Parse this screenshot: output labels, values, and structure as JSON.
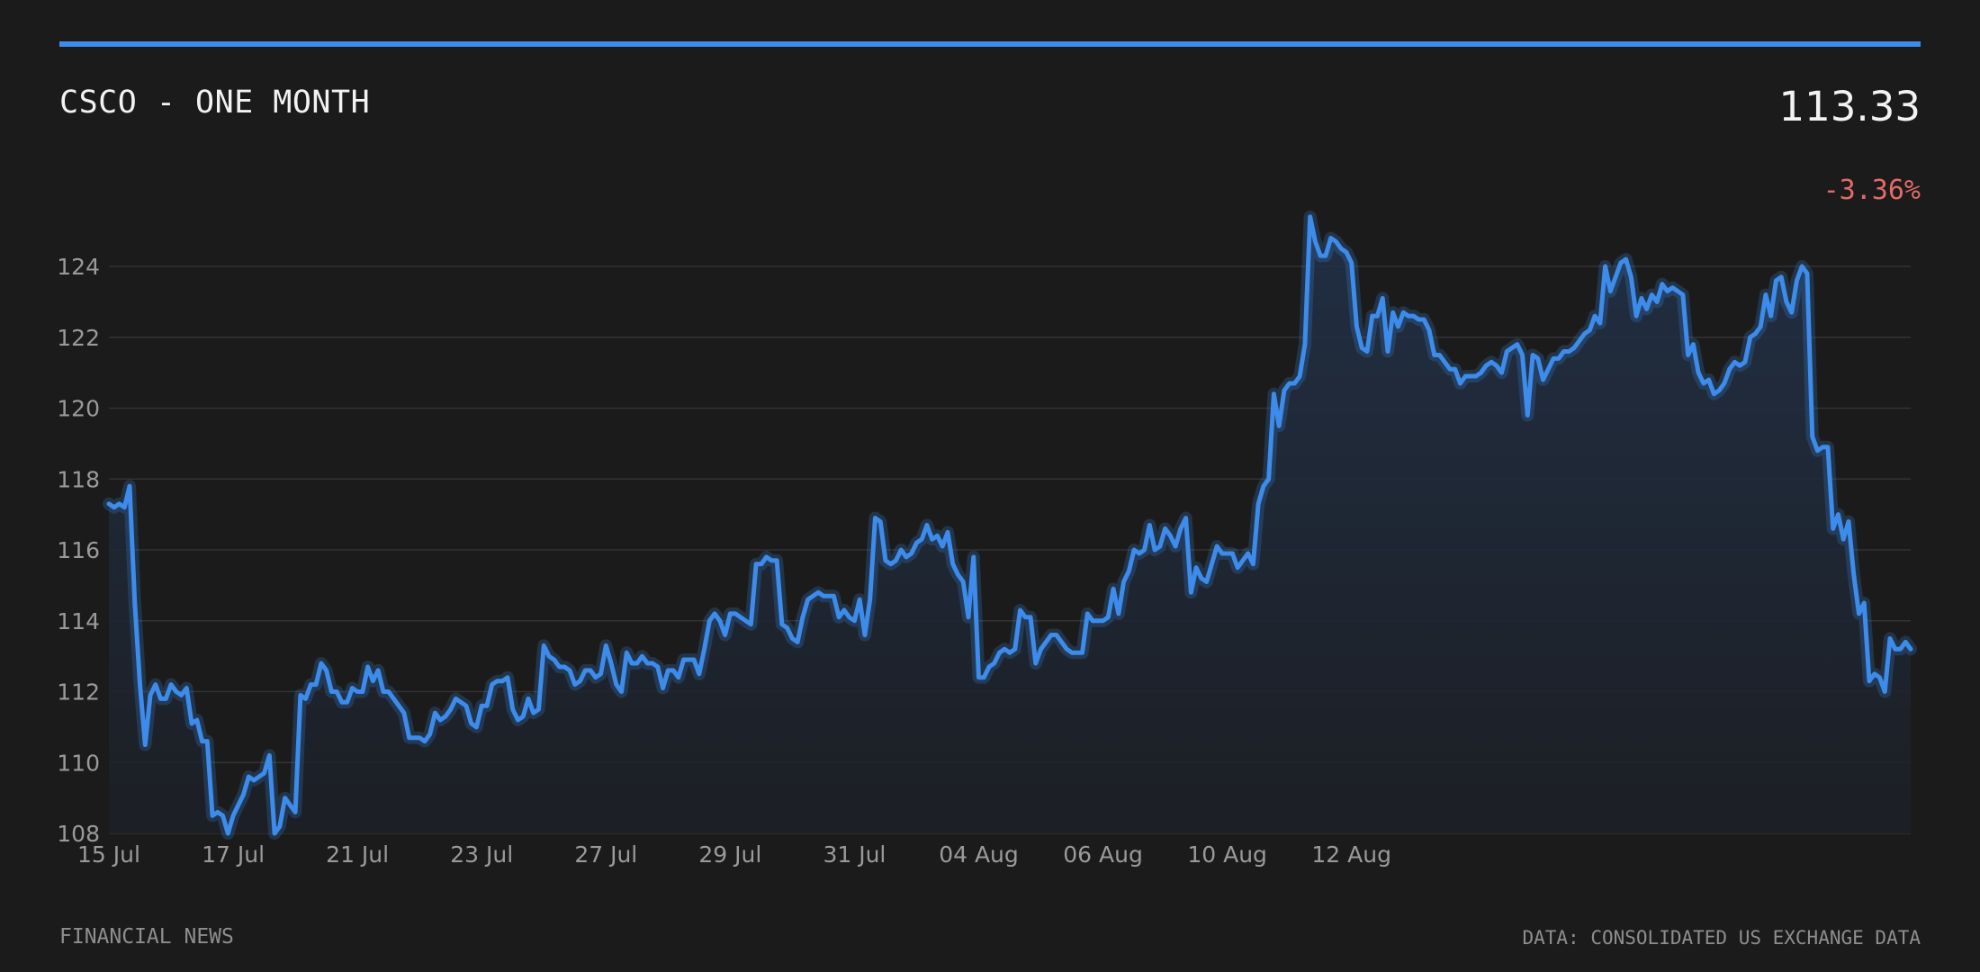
{
  "header": {
    "title": "CSCO - ONE MONTH",
    "price": "113.33",
    "change": "-3.36%"
  },
  "footer": {
    "source": "FINANCIAL NEWS",
    "credit": "DATA: CONSOLIDATED US EXCHANGE DATA"
  },
  "colors": {
    "background": "#1b1b1b",
    "accent": "#3d8bea",
    "line": "#3d8bea",
    "negative": "#e36a6a",
    "grid": "#333333",
    "tick_label": "#9a9a9a"
  },
  "chart_data": {
    "type": "area",
    "title": "CSCO - ONE MONTH",
    "xlabel": "",
    "ylabel": "",
    "ylim": [
      108,
      125.5
    ],
    "grid": true,
    "yticks": [
      108,
      110,
      112,
      114,
      116,
      118,
      120,
      122,
      124
    ],
    "xticks": [
      {
        "label": "15 Jul",
        "t": 0
      },
      {
        "label": "17 Jul",
        "t": 24
      },
      {
        "label": "21 Jul",
        "t": 48
      },
      {
        "label": "23 Jul",
        "t": 72
      },
      {
        "label": "27 Jul",
        "t": 96
      },
      {
        "label": "29 Jul",
        "t": 120
      },
      {
        "label": "31 Jul",
        "t": 144
      },
      {
        "label": "04 Aug",
        "t": 168
      },
      {
        "label": "06 Aug",
        "t": 192
      },
      {
        "label": "10 Aug",
        "t": 216
      },
      {
        "label": "12 Aug",
        "t": 240
      }
    ],
    "series": [
      {
        "values": [
          117.3,
          117.2,
          117.3,
          117.2,
          117.8,
          114.5,
          112.2,
          110.5,
          111.9,
          112.2,
          111.8,
          111.8,
          112.2,
          112.0,
          111.9,
          112.1,
          111.1,
          111.2,
          110.6,
          110.6,
          108.5,
          108.6,
          108.5,
          108.0,
          108.5,
          108.8,
          109.1,
          109.6,
          109.5,
          109.6,
          109.7,
          110.2,
          108.0,
          108.2,
          109.0,
          108.8,
          108.6,
          111.9,
          111.8,
          112.2,
          112.2,
          112.8,
          112.6,
          112.0,
          112.0,
          111.7,
          111.7,
          112.1,
          112.0,
          112.0,
          112.7,
          112.3,
          112.6,
          112.0,
          112.0,
          111.8,
          111.6,
          111.4,
          110.7,
          110.7,
          110.7,
          110.6,
          110.8,
          111.4,
          111.2,
          111.3,
          111.5,
          111.8,
          111.7,
          111.6,
          111.1,
          111.0,
          111.6,
          111.6,
          112.2,
          112.3,
          112.3,
          112.4,
          111.5,
          111.2,
          111.3,
          111.8,
          111.4,
          111.5,
          113.3,
          113.0,
          112.9,
          112.7,
          112.7,
          112.6,
          112.2,
          112.3,
          112.6,
          112.6,
          112.4,
          112.5,
          113.3,
          112.8,
          112.2,
          112.0,
          113.1,
          112.8,
          112.8,
          113.0,
          112.8,
          112.8,
          112.7,
          112.1,
          112.6,
          112.6,
          112.4,
          112.9,
          112.9,
          112.9,
          112.5,
          113.2,
          114.0,
          114.2,
          114.0,
          113.6,
          114.2,
          114.2,
          114.1,
          114.0,
          113.9,
          115.6,
          115.6,
          115.8,
          115.7,
          115.7,
          113.9,
          113.8,
          113.5,
          113.4,
          114.1,
          114.6,
          114.7,
          114.8,
          114.7,
          114.7,
          114.7,
          114.1,
          114.3,
          114.1,
          114.0,
          114.6,
          113.6,
          114.6,
          116.9,
          116.8,
          115.7,
          115.6,
          115.7,
          116.0,
          115.8,
          115.9,
          116.2,
          116.3,
          116.7,
          116.3,
          116.4,
          116.1,
          116.5,
          115.6,
          115.3,
          115.1,
          114.1,
          115.8,
          112.4,
          112.4,
          112.7,
          112.8,
          113.1,
          113.2,
          113.1,
          113.2,
          114.3,
          114.1,
          114.1,
          112.8,
          113.2,
          113.4,
          113.6,
          113.6,
          113.4,
          113.2,
          113.1,
          113.1,
          113.1,
          114.2,
          114.0,
          114.0,
          114.0,
          114.1,
          114.9,
          114.2,
          115.1,
          115.4,
          116.0,
          115.9,
          116.0,
          116.7,
          116.0,
          116.1,
          116.6,
          116.4,
          116.1,
          116.6,
          116.9,
          114.8,
          115.5,
          115.2,
          115.1,
          115.6,
          116.1,
          115.9,
          115.9,
          115.9,
          115.5,
          115.7,
          115.9,
          115.6,
          117.3,
          117.8,
          118.0,
          120.4,
          119.5,
          120.5,
          120.7,
          120.7,
          120.9,
          121.8,
          125.4,
          124.7,
          124.3,
          124.3,
          124.8,
          124.7,
          124.5,
          124.4,
          124.1,
          122.3,
          121.7,
          121.6,
          122.6,
          122.6,
          123.1,
          121.6,
          122.7,
          122.3,
          122.7,
          122.6,
          122.6,
          122.5,
          122.5,
          122.2,
          121.5,
          121.5,
          121.3,
          121.1,
          121.1,
          120.7,
          120.9,
          120.9,
          120.9,
          121.0,
          121.2,
          121.3,
          121.2,
          121.0,
          121.6,
          121.7,
          121.8,
          121.5,
          119.8,
          121.5,
          121.4,
          120.8,
          121.1,
          121.4,
          121.4,
          121.6,
          121.6,
          121.7,
          121.9,
          122.1,
          122.2,
          122.6,
          122.4,
          124.0,
          123.3,
          123.7,
          124.1,
          124.2,
          123.7,
          122.6,
          123.1,
          122.8,
          123.2,
          123.0,
          123.5,
          123.3,
          123.4,
          123.3,
          123.2,
          121.5,
          121.8,
          121.0,
          120.7,
          120.8,
          120.4,
          120.5,
          120.7,
          121.1,
          121.3,
          121.2,
          121.3,
          122.0,
          122.1,
          122.3,
          123.2,
          122.6,
          123.6,
          123.7,
          123.0,
          122.7,
          123.6,
          124.0,
          123.8,
          119.2,
          118.8,
          118.9,
          118.9,
          116.6,
          117.0,
          116.3,
          116.8,
          115.3,
          114.2,
          114.5,
          112.3,
          112.5,
          112.4,
          112.0,
          113.5,
          113.2,
          113.2,
          113.4,
          113.2
        ]
      }
    ]
  }
}
